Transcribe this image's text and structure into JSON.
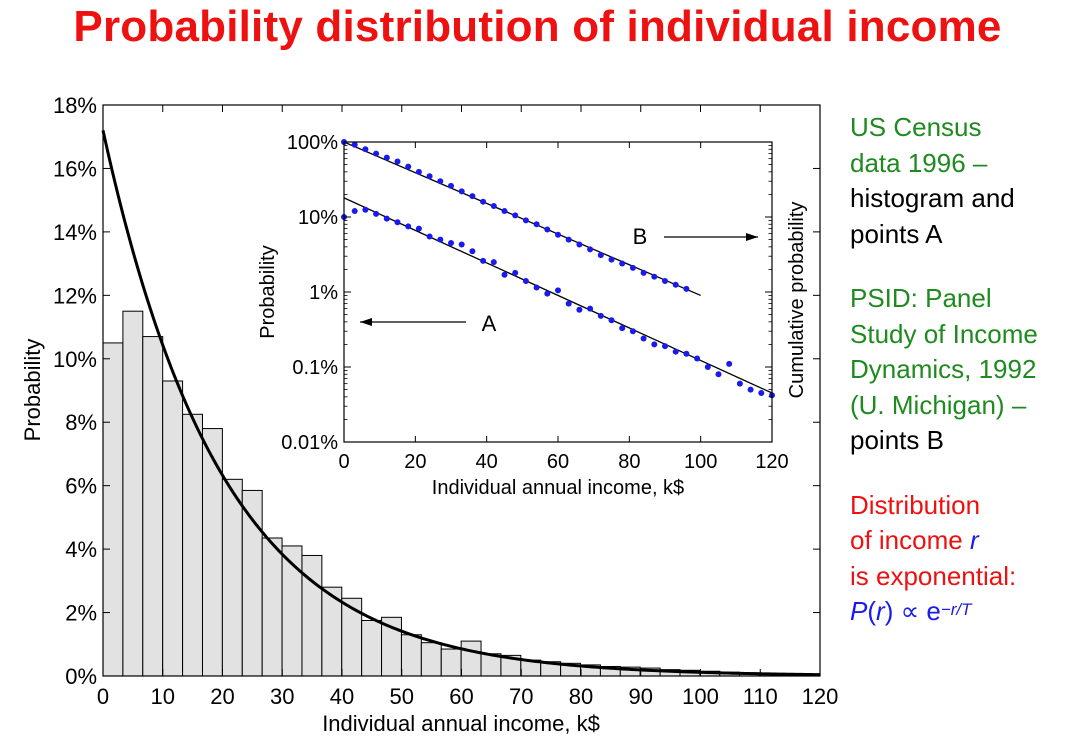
{
  "slide": {
    "title": "Probability distribution of individual income"
  },
  "notes": {
    "census": [
      "US Census",
      "data 1996 –"
    ],
    "census_black": [
      "histogram and",
      "points A"
    ],
    "psid": [
      "PSID:  Panel",
      "Study of Income",
      "Dynamics, 1992",
      "(U. Michigan) –"
    ],
    "psid_black": [
      "points B"
    ],
    "distribution": [
      "Distribution",
      "of income "
    ],
    "distribution_var": "r",
    "distribution_end": "is exponential:",
    "formula": {
      "p": "P",
      "open": "(",
      "r": "r",
      "close": ")",
      "prop": " ∝ e",
      "exp": "−r/T"
    }
  },
  "colors": {
    "title": "#ee1111",
    "green": "#1f8a1f",
    "blue": "#1a1aee",
    "bar_fill": "#e2e2e2",
    "points": "#1a1aee"
  },
  "chart_data": [
    {
      "type": "bar",
      "xlabel": "Individual annual income, k$",
      "ylabel": "Probability",
      "xlim": [
        0,
        120
      ],
      "ylim": [
        0,
        18
      ],
      "xticks": [
        "0",
        "10",
        "20",
        "30",
        "40",
        "50",
        "60",
        "70",
        "80",
        "90",
        "100",
        "110",
        "120"
      ],
      "yticks": [
        "0%",
        "2%",
        "4%",
        "6%",
        "8%",
        "10%",
        "12%",
        "14%",
        "16%",
        "18%"
      ],
      "bin_width": 3.33,
      "bar_values": [
        10.5,
        11.5,
        10.7,
        9.3,
        8.25,
        7.8,
        6.2,
        5.85,
        4.35,
        4.1,
        3.8,
        2.8,
        2.45,
        1.75,
        1.85,
        1.3,
        1.05,
        0.85,
        1.1,
        0.7,
        0.65,
        0.5,
        0.45,
        0.4,
        0.35,
        0.3,
        0.28,
        0.25,
        0.2,
        0.18,
        0.15,
        0.12,
        0.1,
        0.08,
        0.05,
        0.03
      ],
      "fit_curve": {
        "type": "exponential",
        "p0": 17.2,
        "T": 20
      }
    },
    {
      "type": "scatter",
      "xlabel": "Individual annual income, k$",
      "ylabel": "Probability",
      "ylabel_right": "Cumulative probability",
      "xlim": [
        0,
        120
      ],
      "ylog": true,
      "ylim": [
        0.01,
        100
      ],
      "xticks": [
        "0",
        "20",
        "40",
        "60",
        "80",
        "100",
        "120"
      ],
      "yticks": [
        "0.01%",
        "0.1%",
        "1%",
        "10%",
        "100%"
      ],
      "series": [
        {
          "name": "A",
          "x": [
            0,
            3,
            6,
            9,
            12,
            15,
            18,
            21,
            24,
            27,
            30,
            33,
            36,
            39,
            42,
            45,
            48,
            51,
            54,
            57,
            60,
            63,
            66,
            69,
            72,
            75,
            78,
            81,
            84,
            87,
            90,
            93,
            96,
            99,
            102,
            105,
            108,
            111,
            114,
            117,
            120
          ],
          "y": [
            10,
            12,
            12.5,
            11,
            9.5,
            8.5,
            7.5,
            7,
            5.5,
            5,
            4.5,
            4.3,
            3.5,
            2.6,
            2.5,
            1.7,
            1.8,
            1.4,
            1.15,
            0.95,
            1.05,
            0.7,
            0.58,
            0.6,
            0.48,
            0.42,
            0.33,
            0.3,
            0.24,
            0.2,
            0.19,
            0.16,
            0.15,
            0.13,
            0.1,
            0.08,
            0.11,
            0.06,
            0.05,
            0.045,
            0.042
          ],
          "fit": {
            "x": [
              0,
              120
            ],
            "y": [
              18,
              0.045
            ]
          }
        },
        {
          "name": "B",
          "x": [
            0,
            3,
            6,
            9,
            12,
            15,
            18,
            21,
            24,
            27,
            30,
            33,
            36,
            39,
            42,
            45,
            48,
            51,
            54,
            57,
            60,
            63,
            66,
            69,
            72,
            75,
            78,
            81,
            84,
            87,
            90,
            93,
            96
          ],
          "y": [
            100,
            92,
            80,
            70,
            62,
            55,
            47,
            40,
            35,
            30,
            26,
            22,
            19,
            16,
            14,
            12,
            10.5,
            9,
            8,
            6.8,
            5.8,
            5,
            4.3,
            3.7,
            3.1,
            2.7,
            2.4,
            2.1,
            1.8,
            1.6,
            1.4,
            1.25,
            1.1
          ],
          "fit": {
            "x": [
              0,
              100
            ],
            "y": [
              100,
              0.9
            ]
          }
        }
      ],
      "annotations": [
        {
          "text": "B",
          "arrow": "right"
        },
        {
          "text": "A",
          "arrow": "left"
        }
      ]
    }
  ]
}
